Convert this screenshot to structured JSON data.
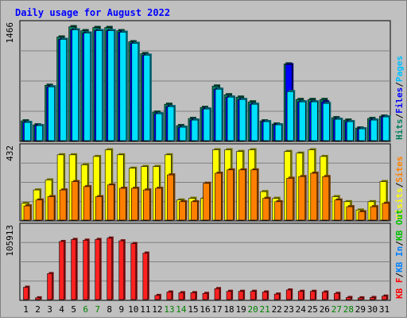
{
  "chart_data": {
    "type": "bar",
    "title": "Daily usage for August 2022",
    "days": [
      "1",
      "2",
      "3",
      "4",
      "5",
      "6",
      "7",
      "8",
      "9",
      "10",
      "11",
      "12",
      "13",
      "14",
      "15",
      "16",
      "17",
      "18",
      "19",
      "20",
      "21",
      "22",
      "23",
      "24",
      "25",
      "26",
      "27",
      "28",
      "29",
      "30",
      "31"
    ],
    "weekend_days": [
      "6",
      "7",
      "13",
      "14",
      "20",
      "21",
      "27",
      "28"
    ],
    "panels": [
      {
        "id": "hits-files-pages",
        "max_label": "1466",
        "ymax": 1466,
        "legend": [
          {
            "text": "Hits",
            "color": "#00805c"
          },
          {
            "text": "/",
            "color": "#000000"
          },
          {
            "text": "Files",
            "color": "#0000ff"
          },
          {
            "text": "/",
            "color": "#000000"
          },
          {
            "text": "Pages",
            "color": "#00c0ff"
          }
        ],
        "series": [
          {
            "name": "Hits",
            "color": "#00805c",
            "values": [
              250,
              200,
              700,
              1310,
              1440,
              1390,
              1430,
              1430,
              1390,
              1250,
              1100,
              360,
              460,
              190,
              280,
              420,
              690,
              580,
              550,
              490,
              250,
              210,
              970,
              520,
              520,
              520,
              290,
              260,
              160,
              280,
              310
            ]
          },
          {
            "name": "Files",
            "color": "#0000ff",
            "values": [
              230,
              190,
              680,
              1280,
              1400,
              1360,
              1390,
              1390,
              1370,
              1230,
              1080,
              340,
              430,
              170,
              260,
              400,
              650,
              550,
              520,
              460,
              240,
              200,
              960,
              490,
              490,
              490,
              270,
              240,
              150,
              260,
              300
            ]
          },
          {
            "name": "Pages",
            "color": "#00e0ff",
            "values": [
              230,
              190,
              680,
              1280,
              1400,
              1360,
              1390,
              1390,
              1370,
              1230,
              1080,
              340,
              430,
              170,
              260,
              400,
              650,
              550,
              520,
              460,
              240,
              200,
              620,
              490,
              490,
              470,
              270,
              240,
              150,
              260,
              300
            ]
          }
        ]
      },
      {
        "id": "visits-sites",
        "max_label": "432",
        "ymax": 432,
        "legend": [
          {
            "text": "Visits",
            "color": "#ffff00"
          },
          {
            "text": "/",
            "color": "#000000"
          },
          {
            "text": "Sites",
            "color": "#ff8000"
          }
        ],
        "series": [
          {
            "name": "Visits",
            "color": "#ffff00",
            "values": [
              100,
              180,
              240,
              390,
              390,
              330,
              380,
              420,
              390,
              310,
              320,
              320,
              390,
              120,
              130,
              130,
              420,
              420,
              410,
              420,
              170,
              130,
              410,
              400,
              420,
              380,
              140,
              110,
              60,
              110,
              230
            ]
          },
          {
            "name": "Sites",
            "color": "#ff8000",
            "values": [
              85,
              120,
              140,
              180,
              230,
              200,
              140,
              210,
              190,
              190,
              180,
              190,
              270,
              110,
              110,
              220,
              280,
              300,
              300,
              300,
              130,
              110,
              250,
              260,
              280,
              260,
              120,
              80,
              50,
              80,
              100
            ]
          }
        ]
      },
      {
        "id": "kbytes",
        "max_label": "105913",
        "ymax": 105913,
        "legend": [
          {
            "text": "KB F",
            "color": "#ff0000"
          },
          {
            "text": "/",
            "color": "#000000"
          },
          {
            "text": "KB In",
            "color": "#0080ff"
          },
          {
            "text": "/",
            "color": "#000000"
          },
          {
            "text": "KB Out",
            "color": "#00c000"
          }
        ],
        "series": [
          {
            "name": "KB F",
            "color": "#ff2020",
            "values": [
              18000,
              2500,
              38000,
              85000,
              88000,
              87000,
              88000,
              90000,
              86000,
              82000,
              68000,
              6000,
              11000,
              10000,
              10000,
              9000,
              16000,
              12000,
              12000,
              12000,
              11000,
              8000,
              14000,
              12000,
              12000,
              11000,
              9000,
              3000,
              2500,
              3000,
              5000
            ]
          }
        ]
      }
    ]
  }
}
